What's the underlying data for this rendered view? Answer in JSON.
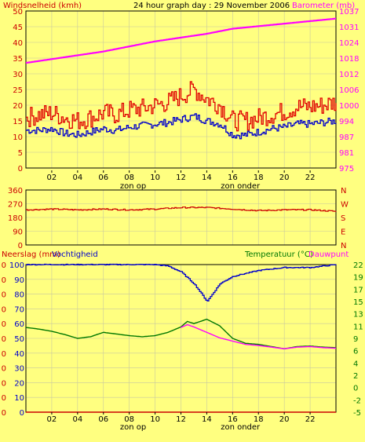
{
  "title": "24 hour graph day : 29 November 2006",
  "colors": {
    "background": "#ffff80",
    "wind_avg": "#0000cc",
    "wind_gust": "#e00000",
    "barometer": "#ff00ff",
    "direction": "#cc0000",
    "humidity": "#0000cc",
    "temperature": "#007700",
    "dewpoint": "#ff00ff",
    "rain": "#cc0000",
    "axis_label_red": "#cc0000",
    "axis_label_magenta": "#ff00ff",
    "axis_label_green": "#007700"
  },
  "x_axis": {
    "ticks": [
      "02",
      "04",
      "06",
      "08",
      "10",
      "12",
      "14",
      "16",
      "18",
      "20",
      "22"
    ],
    "sunrise_label": "zon op",
    "sunset_label": "zon onder",
    "sunrise_hour": 8.3,
    "sunset_hour": 16.6
  },
  "chart_data": [
    {
      "type": "line",
      "id": "wind-barometer",
      "left_label": "Windsnelheid (kmh)",
      "right_label": "Barometer (mb)",
      "left_ticks": [
        "0",
        "5",
        "10",
        "15",
        "20",
        "25",
        "30",
        "35",
        "40",
        "45",
        "50"
      ],
      "right_ticks": [
        "975",
        "981",
        "987",
        "994",
        "1000",
        "1006",
        "1012",
        "1018",
        "1024",
        "1031",
        "1037"
      ],
      "ylim": [
        0,
        50
      ],
      "y2lim": [
        975,
        1037
      ],
      "xlim": [
        0,
        24
      ],
      "series": [
        {
          "key": "wind_avg",
          "x": [
            0,
            1,
            2,
            3,
            4,
            5,
            6,
            7,
            8,
            9,
            10,
            11,
            12,
            13,
            14,
            15,
            16,
            17,
            18,
            19,
            20,
            21,
            22,
            23,
            24
          ],
          "values": [
            12,
            12,
            12.5,
            11,
            10.5,
            11.5,
            12.5,
            12,
            13,
            13.5,
            14,
            14.5,
            15.5,
            16.5,
            15,
            14,
            10.5,
            10.5,
            11.5,
            12.5,
            13,
            14,
            14,
            14.5,
            15
          ]
        },
        {
          "key": "wind_gust",
          "x": [
            0,
            1,
            2,
            3,
            4,
            5,
            6,
            7,
            8,
            9,
            10,
            11,
            12,
            13,
            14,
            15,
            16,
            17,
            18,
            19,
            20,
            21,
            22,
            23,
            24
          ],
          "values": [
            16,
            17,
            17.5,
            16,
            15,
            16,
            17.5,
            17,
            18.5,
            19,
            20,
            21,
            23,
            25,
            22,
            20,
            15,
            15,
            16,
            17,
            18,
            19.5,
            19.5,
            20,
            21
          ]
        },
        {
          "key": "barometer",
          "axis": "right",
          "x": [
            0,
            2,
            4,
            6,
            8,
            10,
            12,
            14,
            16,
            18,
            20,
            22,
            24
          ],
          "values": [
            1016.5,
            1018,
            1019.5,
            1021,
            1023,
            1025,
            1026.5,
            1028,
            1030,
            1031,
            1032,
            1033,
            1034
          ]
        }
      ]
    },
    {
      "type": "line",
      "id": "wind-direction",
      "left_ticks": [
        "0",
        "90",
        "180",
        "270",
        "360"
      ],
      "right_ticks": [
        "N",
        "E",
        "S",
        "W",
        "N"
      ],
      "ylim": [
        0,
        360
      ],
      "xlim": [
        0,
        24
      ],
      "series": [
        {
          "key": "direction",
          "x": [
            0,
            2,
            4,
            6,
            8,
            10,
            12,
            14,
            16,
            18,
            20,
            22,
            24
          ],
          "values": [
            230,
            235,
            230,
            235,
            230,
            235,
            245,
            245,
            235,
            225,
            230,
            230,
            220
          ]
        }
      ]
    },
    {
      "type": "line",
      "id": "rain-humidity-temperature",
      "left_label_1": "Neerslag (mm)",
      "left_label_2": "Vochtigheid",
      "right_label_1": "Temperatuur (°C)",
      "right_label_2": "Dauwpunt",
      "left_ticks_1": [
        "0",
        "0",
        "0",
        "0",
        "0",
        "0",
        "0",
        "0",
        "0",
        "0",
        "0"
      ],
      "left_ticks_2": [
        "0",
        "10",
        "20",
        "30",
        "40",
        "50",
        "60",
        "70",
        "80",
        "90",
        "100"
      ],
      "right_ticks": [
        "-5",
        "-2",
        "0",
        "2",
        "4",
        "6",
        "9",
        "11",
        "13",
        "15",
        "17",
        "19",
        "22"
      ],
      "ylim": [
        0,
        100
      ],
      "y2lim": [
        -5,
        22
      ],
      "xlim": [
        0,
        24
      ],
      "series": [
        {
          "key": "humidity",
          "x": [
            0,
            10,
            11,
            12,
            13,
            13.6,
            14,
            14.5,
            15,
            16,
            17,
            18,
            19,
            20,
            21,
            22,
            23,
            24
          ],
          "values": [
            100,
            100,
            99,
            95,
            87,
            80,
            75,
            81,
            87,
            92,
            94,
            96,
            97,
            98,
            98,
            98,
            99,
            100
          ]
        },
        {
          "key": "temperature",
          "axis": "right",
          "x": [
            0,
            1,
            2,
            3,
            4,
            5,
            6,
            7,
            8,
            9,
            10,
            11,
            12,
            12.5,
            13,
            14,
            15,
            16,
            17,
            18,
            19,
            20,
            21,
            22,
            23,
            24
          ],
          "values": [
            10.5,
            10.2,
            9.8,
            9.2,
            8.5,
            8.8,
            9.6,
            9.3,
            9.0,
            8.8,
            9.0,
            9.6,
            10.6,
            11.6,
            11.2,
            12.0,
            10.8,
            8.5,
            7.6,
            7.4,
            7.0,
            6.6,
            7.0,
            7.1,
            6.9,
            6.8
          ]
        },
        {
          "key": "dewpoint",
          "axis": "right",
          "x": [
            12,
            12.5,
            13,
            14,
            15,
            16,
            17,
            18,
            19,
            20,
            21,
            22,
            23,
            24
          ],
          "values": [
            10.5,
            11.0,
            10.6,
            9.6,
            8.6,
            8.0,
            7.4,
            7.2,
            6.9,
            6.6,
            6.9,
            7.0,
            6.8,
            6.7
          ]
        },
        {
          "key": "rain",
          "x": [
            0,
            24
          ],
          "values": [
            0,
            0
          ]
        }
      ]
    }
  ]
}
